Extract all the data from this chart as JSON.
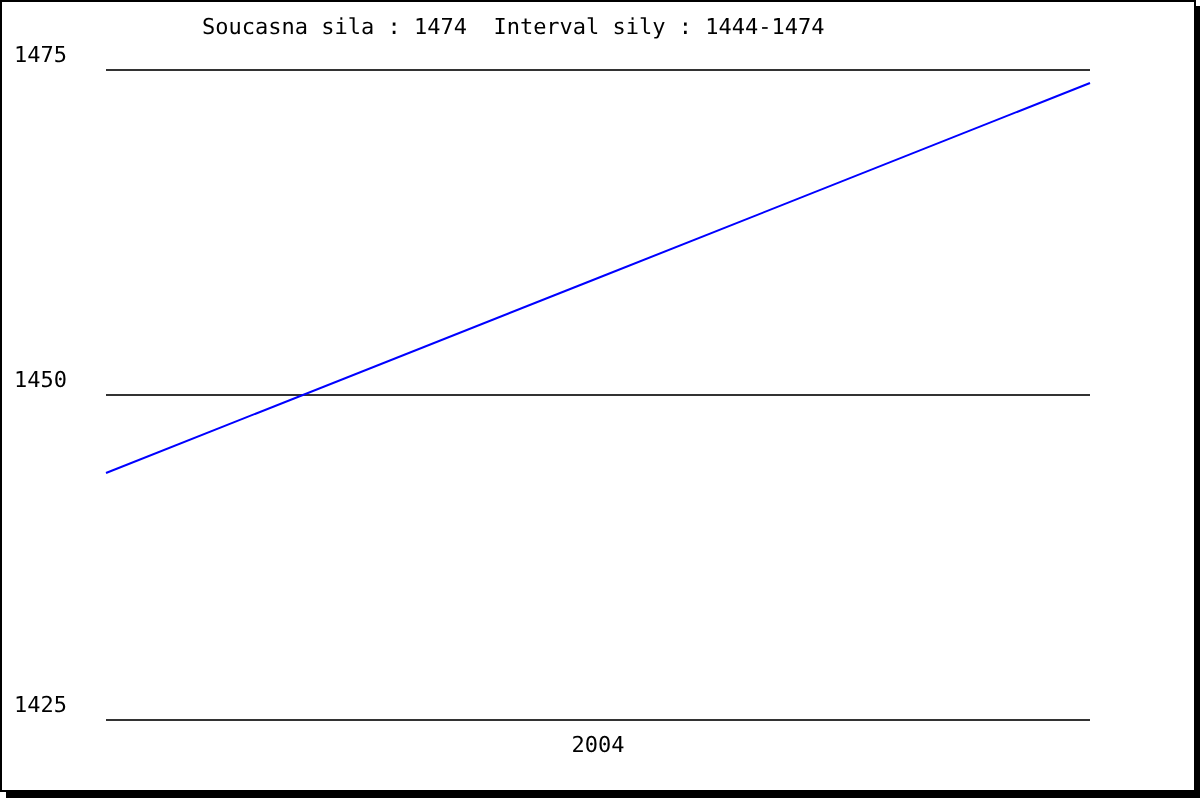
{
  "chart_data": {
    "type": "line",
    "title": "Soucasna sila : 1474  Interval sily : 1444-1474",
    "categories": [
      null,
      "2004",
      null
    ],
    "series": [
      {
        "color": "#0000ff",
        "values": [
          1444,
          1459,
          1474
        ]
      }
    ],
    "ylim": [
      1425,
      1475
    ],
    "yticks": [
      1425,
      1450,
      1475
    ],
    "grid": "y",
    "legend": false,
    "marker": "none"
  }
}
